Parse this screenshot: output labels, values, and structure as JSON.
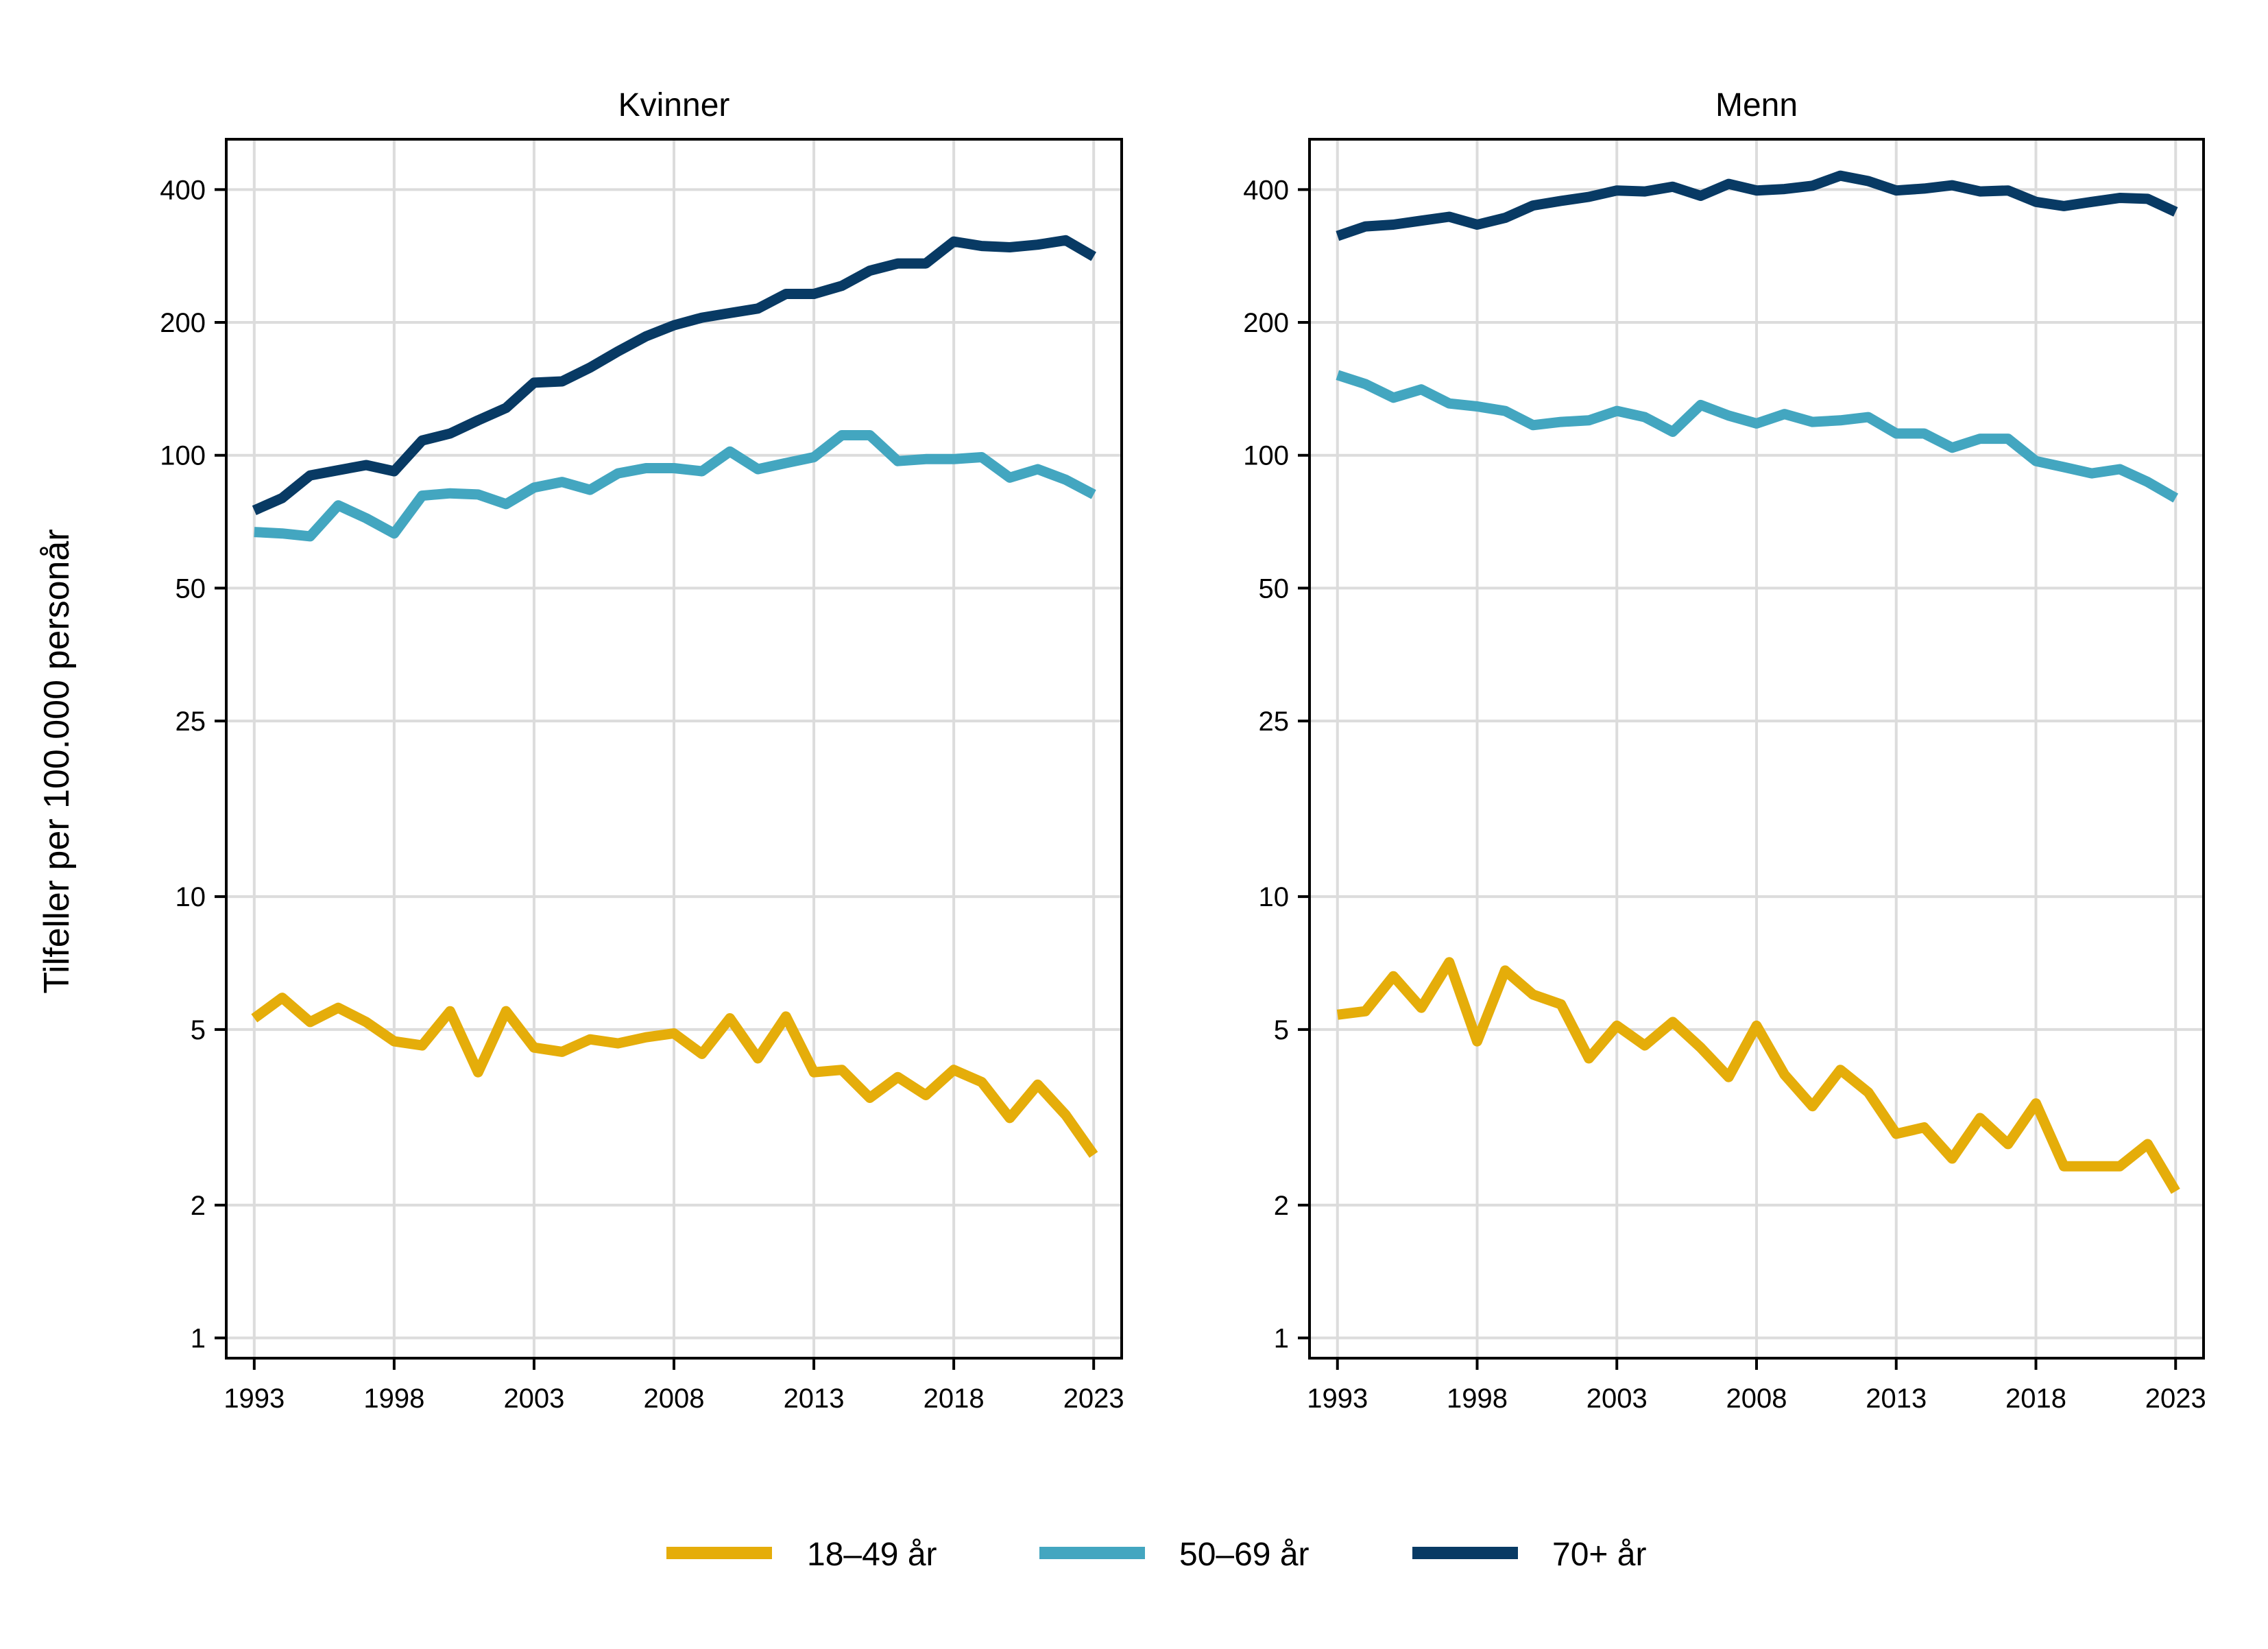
{
  "chart_data": [
    {
      "type": "line",
      "title": "Kvinner",
      "ylabel": "Tilfeller per 100.000 personår",
      "yscale": "log",
      "ylim": [
        0.9,
        520
      ],
      "yticks": [
        1,
        2,
        5,
        10,
        25,
        50,
        100,
        200,
        400
      ],
      "xlim": [
        1992,
        2024
      ],
      "xticks": [
        1993,
        1998,
        2003,
        2008,
        2013,
        2018,
        2023
      ],
      "x": [
        1993,
        1994,
        1995,
        1996,
        1997,
        1998,
        1999,
        2000,
        2001,
        2002,
        2003,
        2004,
        2005,
        2006,
        2007,
        2008,
        2009,
        2010,
        2011,
        2012,
        2013,
        2014,
        2015,
        2016,
        2017,
        2018,
        2019,
        2020,
        2021,
        2022,
        2023
      ],
      "series": [
        {
          "name": "18–49 år",
          "color": "#e5ad0a",
          "values": [
            5.3,
            5.9,
            5.2,
            5.6,
            5.2,
            4.7,
            4.6,
            5.5,
            4.0,
            5.5,
            4.55,
            4.45,
            4.75,
            4.65,
            4.8,
            4.9,
            4.4,
            5.3,
            4.3,
            5.35,
            4.0,
            4.05,
            3.5,
            3.9,
            3.55,
            4.05,
            3.8,
            3.15,
            3.75,
            3.2,
            2.6
          ]
        },
        {
          "name": "50–69 år",
          "color": "#43a6c0",
          "values": [
            67,
            66.5,
            65.5,
            77,
            72,
            66.5,
            81,
            82,
            81.5,
            77.5,
            84.5,
            87,
            83.5,
            91,
            93.5,
            93.5,
            92,
            102,
            93,
            96,
            99,
            111,
            111,
            97,
            98,
            98,
            99,
            89,
            93,
            88,
            81.5
          ]
        },
        {
          "name": "70+ år",
          "color": "#083a64",
          "values": [
            75,
            80,
            90,
            92.5,
            95,
            92,
            108,
            112,
            120,
            128,
            146,
            147,
            158,
            172,
            186,
            197,
            205,
            210,
            215,
            232,
            232,
            242,
            262,
            272,
            272,
            305,
            298,
            296,
            300,
            307,
            282
          ]
        }
      ]
    },
    {
      "type": "line",
      "title": "Menn",
      "yscale": "log",
      "ylim": [
        0.9,
        520
      ],
      "yticks": [
        1,
        2,
        5,
        10,
        25,
        50,
        100,
        200,
        400
      ],
      "xlim": [
        1992,
        2024
      ],
      "xticks": [
        1993,
        1998,
        2003,
        2008,
        2013,
        2018,
        2023
      ],
      "x": [
        1993,
        1994,
        1995,
        1996,
        1997,
        1998,
        1999,
        2000,
        2001,
        2002,
        2003,
        2004,
        2005,
        2006,
        2007,
        2008,
        2009,
        2010,
        2011,
        2012,
        2013,
        2014,
        2015,
        2016,
        2017,
        2018,
        2019,
        2020,
        2021,
        2022,
        2023
      ],
      "series": [
        {
          "name": "18–49 år",
          "color": "#e5ad0a",
          "values": [
            5.4,
            5.5,
            6.6,
            5.6,
            7.1,
            4.7,
            6.8,
            6.0,
            5.7,
            4.3,
            5.1,
            4.6,
            5.2,
            4.55,
            3.9,
            5.1,
            3.95,
            3.35,
            4.05,
            3.6,
            2.9,
            3.0,
            2.55,
            3.15,
            2.75,
            3.4,
            2.45,
            2.45,
            2.45,
            2.75,
            2.15
          ]
        },
        {
          "name": "50–69 år",
          "color": "#43a6c0",
          "values": [
            152,
            145,
            135,
            141,
            131,
            129,
            126,
            117,
            119,
            120,
            126,
            122,
            113,
            130,
            123,
            118,
            124,
            119,
            120,
            122,
            112,
            112,
            104,
            109,
            109,
            97,
            94,
            91,
            93,
            87,
            80
          ]
        },
        {
          "name": "70+ år",
          "color": "#083a64",
          "values": [
            314,
            330,
            333,
            340,
            347,
            333,
            345,
            368,
            377,
            385,
            398,
            396,
            406,
            387,
            412,
            398,
            401,
            408,
            430,
            418,
            398,
            402,
            409,
            396,
            398,
            375,
            367,
            375,
            383,
            381,
            356
          ]
        }
      ]
    }
  ]
}
